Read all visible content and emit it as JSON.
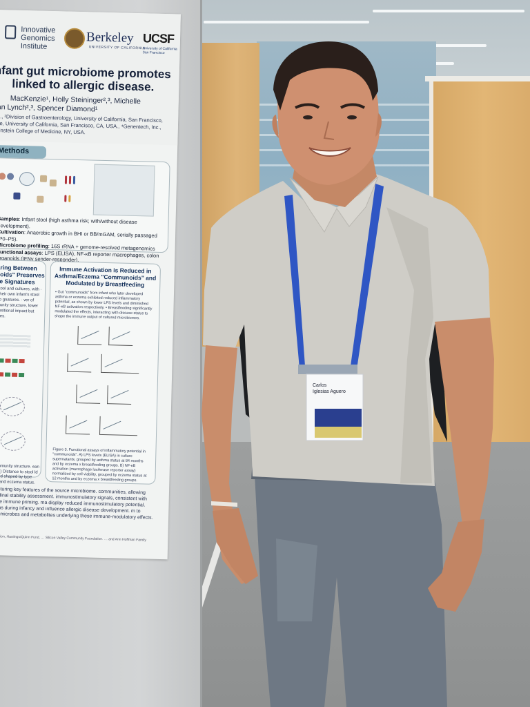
{
  "poster": {
    "logos": {
      "igi_line1": "Innovative",
      "igi_line2": "Genomics",
      "igi_line3": "Institute",
      "berkeley": "Berkeley",
      "berkeley_sub": "UNIVERSITY OF CALIFORNIA",
      "ucsf": "UCSF",
      "ucsf_sub": "University of California San Francisco"
    },
    "title_line1": "nfant gut microbiome promotes",
    "title_line2": "linked to allergic disease.",
    "authors_line1": "MacKenzie¹, Holly Steininger²,³, Michelle",
    "authors_line2": "san Lynch²,³, Spencer Diamond¹",
    "affil_line1": "SA., ²Division of Gastroenterology, University of California, San Francisco,",
    "affil_line2": "cine, University of California, San Francisco, CA, USA., ⁴Genentech, Inc.,",
    "affil_line3": "t Einstein College of Medicine, NY, USA.",
    "methods_heading": "Methods",
    "methods": [
      {
        "label": "Samples",
        "text": ": Infant stool (high asthma risk; with/without disease development)."
      },
      {
        "label": "Cultivation",
        "text": ": Anaerobic growth in BHI or BB/mGAM, serially passaged (P0–P5)."
      },
      {
        "label": "Microbiome profiling",
        "text": ": 16S rRNA + genome-resolved metagenomics"
      },
      {
        "label": "Functional assays",
        "text": ": LPS (ELISA), NF-κB reporter macrophages, colon organoids (IFNγ sender-responder)."
      }
    ],
    "left_section_title": "Sharing Between nunoids\" Preserves iome Signatures",
    "left_section_body": "een stool and cultures, with · from their own infant's stool than to gnatures. · ver of community structure, lower compositional impact but ferences.",
    "left_caption": "and community structure. ean chart). B) Distance to stool ld infant and shaped by type asthma and eczema status.",
    "mid_section_title": "Immune Activation is Reduced in Asthma/Eczema \"Communoids\" and Modulated by Breastfeeding",
    "mid_section_body": "• Gut \"communoids\" from infant who later developed asthma or eczema exhibited reduced inflammatory potential, as shown by lower LPS levels and diminished NF-κB activation respectively. • Breastfeeding significantly modulated the effects, interacting with disease status to shape the immune output of cultured microbiomes.",
    "mid_caption": "Figure 3. Functional assays of inflammatory potential in \"communoids\". A) LPS levels (ELISA) in culture supernatants, grouped by asthma status at 84 months and by eczema x breastfeeding groups. B) NF-κB activation (macrophage luciferase reporter assay) normalized by cell viability, grouped by eczema status at 12 months and by eczema x breastfeeding groups.",
    "bottom_text": "s\"), capturing key features of the source microbiome. communities, allowing longitudinal stability assessment. immunostimulatory signals, consistent with early-life immune priming. ma display reduced immunostimulatory potential. eractions during infancy and influence allergic disease development. m to identify microbes and metabolites underlying these immune-modulatory effects.",
    "foot_text": "lie Foundation, Hastings/Quinn Fund, … Silicon Valley Community Foundation. … and Ann Hoffman Family Fund."
  },
  "badge": {
    "name_line1": "Carlos",
    "name_line2": "Iglesias Aguero"
  },
  "colors": {
    "lanyard": "#2f56c4",
    "shirt": "#cfcdc7",
    "jeans": "#6e7884",
    "backpack": "#1d1f22",
    "skin": "#c98d6b",
    "poster_header_bar": "#8fb2c0"
  }
}
